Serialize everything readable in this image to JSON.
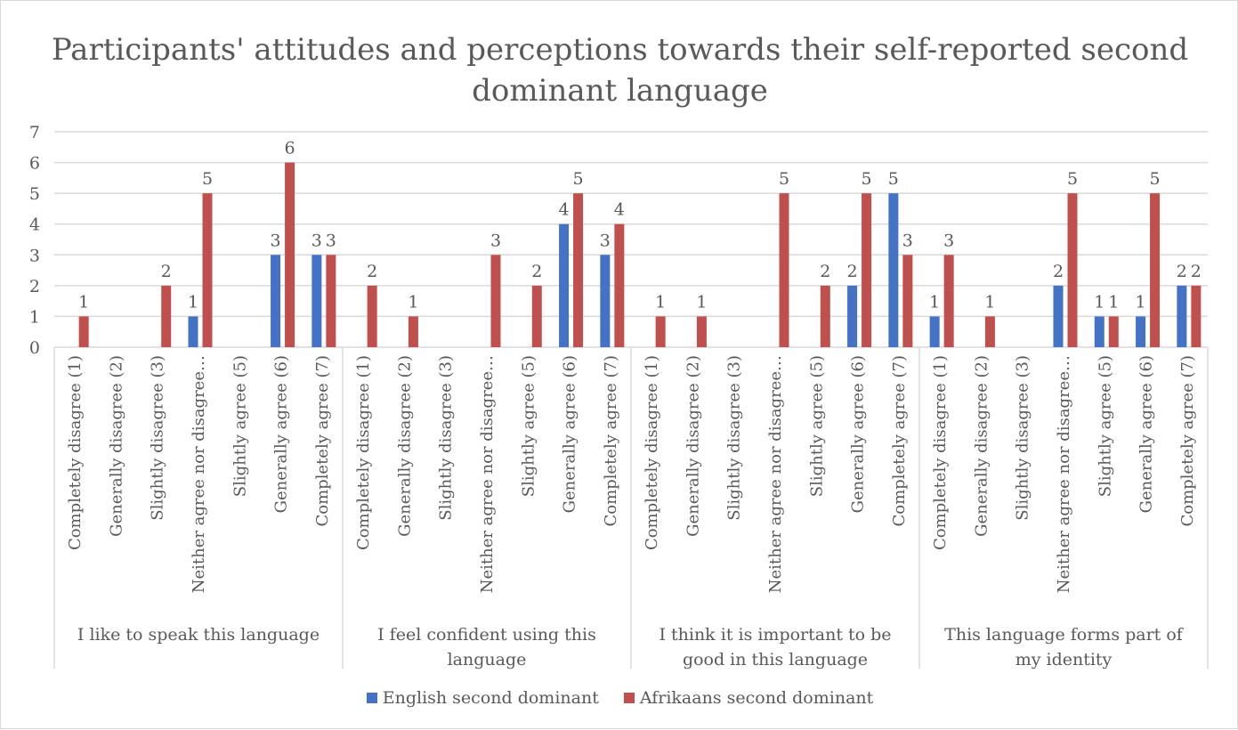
{
  "chart_data": {
    "type": "bar",
    "title": "Participants' attitudes and perceptions towards their self-reported second dominant language",
    "ylim": [
      0,
      7
    ],
    "yticks": [
      0,
      1,
      2,
      3,
      4,
      5,
      6,
      7
    ],
    "grid": true,
    "legend_position": "bottom",
    "groups": [
      {
        "label": "I like to speak this language",
        "categories": [
          "Completely disagree (1)",
          "Generally disagree (2)",
          "Slightly disagree (3)",
          "Neither agree nor disagree…",
          "Slightly agree (5)",
          "Generally agree (6)",
          "Completely agree (7)"
        ],
        "english": [
          null,
          null,
          null,
          1,
          null,
          3,
          3
        ],
        "afrikaans": [
          1,
          null,
          2,
          5,
          null,
          6,
          3
        ]
      },
      {
        "label": "I feel confident using this language",
        "categories": [
          "Completely disagree (1)",
          "Generally disagree (2)",
          "Slightly disagree (3)",
          "Neither agree nor disagree…",
          "Slightly agree (5)",
          "Generally agree (6)",
          "Completely agree (7)"
        ],
        "english": [
          null,
          null,
          null,
          null,
          null,
          4,
          3
        ],
        "afrikaans": [
          2,
          1,
          null,
          3,
          2,
          5,
          4
        ]
      },
      {
        "label": "I think it is important to be good in this language",
        "categories": [
          "Completely disagree (1)",
          "Generally disagree (2)",
          "Slightly disagree (3)",
          "Neither agree nor disagree…",
          "Slightly agree (5)",
          "Generally agree (6)",
          "Completely agree (7)"
        ],
        "english": [
          null,
          null,
          null,
          null,
          null,
          2,
          5
        ],
        "afrikaans": [
          1,
          1,
          null,
          5,
          2,
          5,
          3
        ]
      },
      {
        "label": "This language forms part of my identity",
        "categories": [
          "Completely disagree (1)",
          "Generally disagree (2)",
          "Slightly disagree (3)",
          "Neither agree nor disagree…",
          "Slightly agree (5)",
          "Generally agree (6)",
          "Completely agree (7)"
        ],
        "english": [
          1,
          null,
          null,
          2,
          1,
          1,
          2
        ],
        "afrikaans": [
          3,
          1,
          null,
          5,
          1,
          5,
          2
        ]
      }
    ],
    "series": [
      {
        "name": "English second dominant",
        "key": "english",
        "color": "#4472c4"
      },
      {
        "name": "Afrikaans second dominant",
        "key": "afrikaans",
        "color": "#c0504d"
      }
    ]
  }
}
